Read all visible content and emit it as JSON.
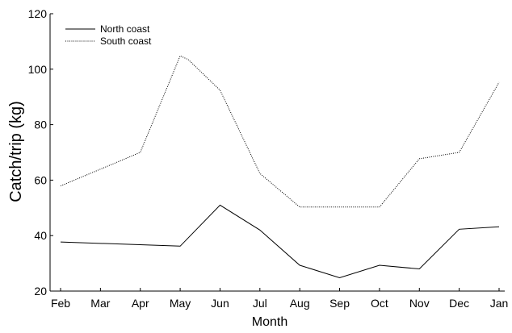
{
  "chart_data": {
    "type": "line",
    "title": "",
    "xlabel": "Month",
    "ylabel": "Catch/trip (kg)",
    "categories": [
      "Feb",
      "Mar",
      "Apr",
      "May",
      "Jun",
      "Jul",
      "Aug",
      "Sep",
      "Oct",
      "Nov",
      "Dec",
      "Jan"
    ],
    "ylim": [
      20,
      120
    ],
    "yticks": [
      "20",
      "40",
      "60",
      "80",
      "100",
      "120"
    ],
    "grid": false,
    "legend_position": "top-left",
    "series": [
      {
        "name": "North coast",
        "style": "solid",
        "color": "#000000",
        "x": [
          0,
          3,
          4,
          5,
          6,
          7,
          8,
          9,
          10,
          11
        ],
        "y": [
          37.7,
          36.2,
          51.0,
          42.0,
          29.3,
          24.8,
          29.3,
          28.0,
          42.3,
          43.2
        ]
      },
      {
        "name": "South coast",
        "style": "dotted",
        "color": "#000000",
        "x": [
          0,
          2,
          3,
          3.2,
          4,
          5,
          6,
          7,
          8,
          9,
          10,
          11
        ],
        "y": [
          57.9,
          70.0,
          104.8,
          103.5,
          92.4,
          62.4,
          50.3,
          50.3,
          50.3,
          67.7,
          70.0,
          95.3
        ]
      }
    ]
  }
}
